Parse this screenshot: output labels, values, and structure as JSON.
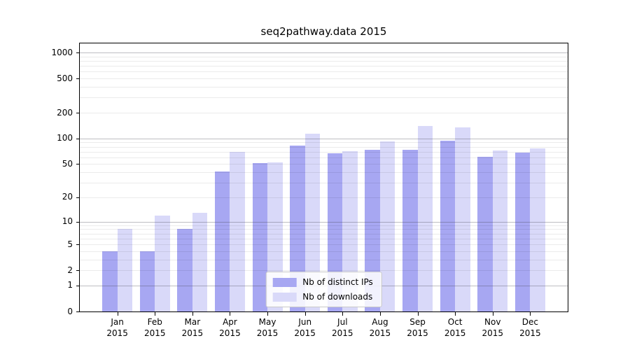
{
  "title": "seq2pathway.data 2015",
  "chart_data": {
    "type": "bar",
    "title": "seq2pathway.data 2015",
    "categories": [
      "Jan",
      "Feb",
      "Mar",
      "Apr",
      "May",
      "Jun",
      "Jul",
      "Aug",
      "Sep",
      "Oct",
      "Nov",
      "Dec"
    ],
    "year_label": "2015",
    "series": [
      {
        "name": "Nb of distinct IPs",
        "color": "#a7a7f2",
        "values": [
          4,
          4,
          8,
          41,
          51,
          82,
          67,
          74,
          74,
          95,
          61,
          68
        ]
      },
      {
        "name": "Nb of downloads",
        "color": "#d9d9f9",
        "values": [
          8,
          12,
          13,
          69,
          52,
          113,
          71,
          93,
          140,
          136,
          72,
          76
        ]
      }
    ],
    "xlabel": "",
    "ylabel": "",
    "y_ticks": [
      0,
      1,
      2,
      5,
      10,
      20,
      50,
      100,
      200,
      500,
      1000
    ],
    "y_scale": "log10(1+v)",
    "y_axis_max": 1276,
    "x_axis_units": 13,
    "grid": "on",
    "legend_position": "lower center",
    "colors": {
      "distinct_ips": "#a7a7f2",
      "downloads": "#d9d9f9",
      "grid_major": "rgba(70,70,80,0.35)",
      "grid_minor": "rgba(0,0,0,0.08)",
      "axis": "#000000"
    }
  }
}
